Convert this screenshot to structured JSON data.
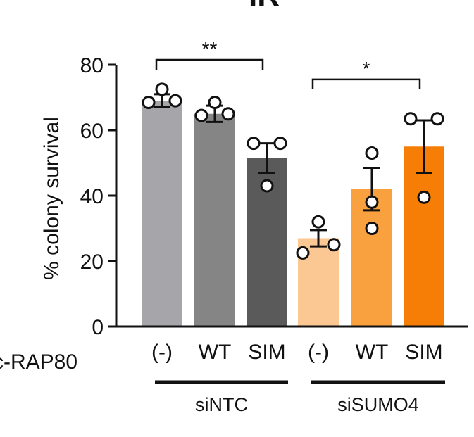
{
  "chart_data": {
    "type": "bar",
    "title": "IR",
    "ylabel": "% colony survival",
    "ylim": [
      0,
      80
    ],
    "yticks": [
      0,
      20,
      40,
      60,
      80
    ],
    "row_label": "c-RAP80",
    "categories": [
      "(-)",
      "WT",
      "SIM",
      "(-)",
      "WT",
      "SIM"
    ],
    "groups": [
      {
        "label": "siNTC",
        "members": [
          0,
          1,
          2
        ]
      },
      {
        "label": "siSUMO4",
        "members": [
          3,
          4,
          5
        ]
      }
    ],
    "values": [
      69,
      65,
      51.5,
      27,
      42,
      55
    ],
    "errors": [
      2,
      2.5,
      4.5,
      2.5,
      6.5,
      8
    ],
    "points": [
      [
        68.5,
        69,
        72.5
      ],
      [
        64.5,
        65,
        68.5
      ],
      [
        56,
        56,
        43
      ],
      [
        22.5,
        25,
        32
      ],
      [
        30,
        38,
        53
      ],
      [
        39.5,
        63.5,
        63.5
      ]
    ],
    "colors": [
      "#a6a6aa",
      "#858585",
      "#5a5a5a",
      "#fbc894",
      "#f9a13e",
      "#f67e06"
    ],
    "significance": [
      {
        "from": 0,
        "to": 2,
        "y": 81.5,
        "label": "**"
      },
      {
        "from": 3,
        "to": 5,
        "y": 75.5,
        "label": "*"
      }
    ]
  }
}
